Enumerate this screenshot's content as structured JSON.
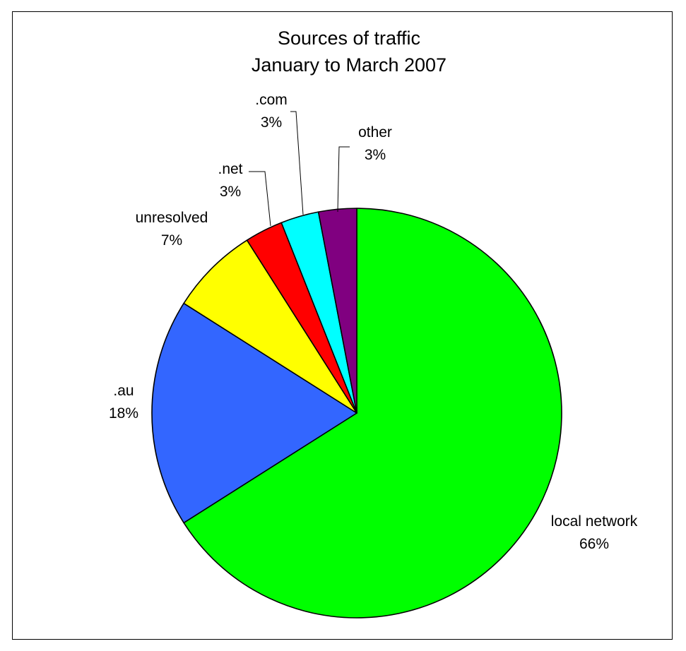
{
  "chart_data": {
    "type": "pie",
    "title": "Sources of traffic",
    "subtitle": "January to March 2007",
    "slices": [
      {
        "name": "local network",
        "value": 66,
        "label": "66%",
        "color": "#00ff00"
      },
      {
        "name": ".au",
        "value": 18,
        "label": "18%",
        "color": "#3366ff"
      },
      {
        "name": "unresolved",
        "value": 7,
        "label": "7%",
        "color": "#ffff00"
      },
      {
        "name": ".net",
        "value": 3,
        "label": "3%",
        "color": "#ff0000"
      },
      {
        "name": ".com",
        "value": 3,
        "label": "3%",
        "color": "#00ffff"
      },
      {
        "name": "other",
        "value": 3,
        "label": "3%",
        "color": "#800080"
      }
    ],
    "legend": "none",
    "data_labels": "category name and percentage"
  }
}
